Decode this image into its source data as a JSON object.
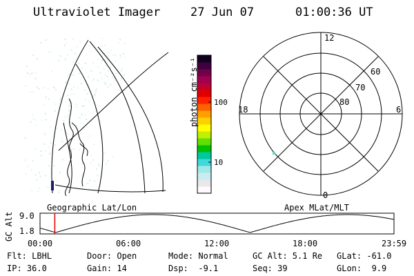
{
  "header": {
    "instrument": "Ultraviolet Imager",
    "date": "27 Jun 07",
    "time": "01:00:36 UT"
  },
  "colorbar": {
    "unit_label": "photon cm⁻²s⁻¹",
    "ticks": [
      "100",
      "10"
    ],
    "colors": [
      "#fffaff",
      "#e8e8e8",
      "#c8ecf0",
      "#a0e8e8",
      "#40d8d8",
      "#00c8a0",
      "#00c000",
      "#60e000",
      "#c0f000",
      "#ffff00",
      "#ffd000",
      "#ffa000",
      "#ff6000",
      "#ff2000",
      "#e00000",
      "#c00030",
      "#a00050",
      "#70004a",
      "#400040",
      "#100020"
    ]
  },
  "geo_map": {
    "label": "Geographic Lat/Lon"
  },
  "polar": {
    "label": "Apex MLat/MLT",
    "mlt_labels": {
      "top": "12",
      "left": "18",
      "right": "6",
      "bottom": "0"
    },
    "lat_labels": [
      "60",
      "70",
      "80"
    ]
  },
  "timeline": {
    "ylabel": "GC Alt",
    "ytick_top": "9.0",
    "ytick_bottom": "1.8",
    "xticks": [
      "00:00",
      "06:00",
      "12:00",
      "18:00",
      "23:59"
    ],
    "marker_time": "01:00"
  },
  "status": {
    "flt": "Flt: LBHL",
    "ip": "IP: 36.0",
    "door": "Door: Open",
    "gain": "Gain: 14",
    "mode": "Mode: Normal",
    "dsp": "Dsp:  -9.1",
    "gcalt": "GC Alt: 5.1 Re",
    "seq": "Seq: 39",
    "glat": "GLat: -61.0",
    "glon": "GLon:  9.9"
  }
}
